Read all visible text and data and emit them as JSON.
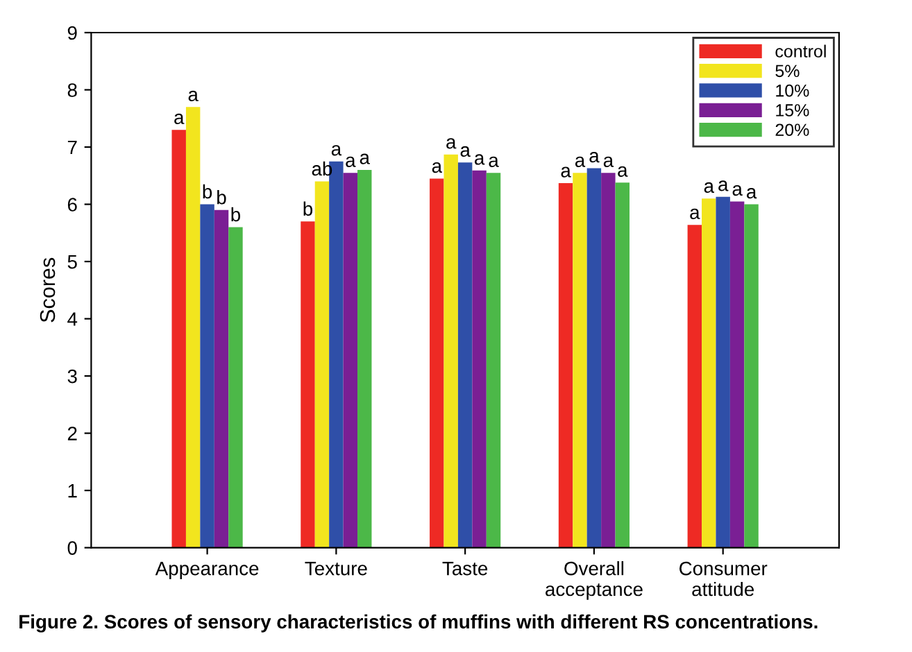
{
  "chart_data": {
    "type": "bar",
    "ylabel": "Scores",
    "categories": [
      "Appearance",
      "Texture",
      "Taste",
      "Overall\nacceptance",
      "Consumer\nattitude"
    ],
    "ylim": [
      0,
      9
    ],
    "yticks": [
      0,
      1,
      2,
      3,
      4,
      5,
      6,
      7,
      8,
      9
    ],
    "grid": false,
    "legend": "top right",
    "series": [
      {
        "name": "control",
        "color": "#ee2a24",
        "values": [
          7.3,
          5.7,
          6.45,
          6.37,
          5.64
        ],
        "value_labels": [
          "a",
          "b",
          "a",
          "a",
          "a"
        ]
      },
      {
        "name": "5%",
        "color": "#f2e51e",
        "values": [
          7.7,
          6.4,
          6.87,
          6.55,
          6.1
        ],
        "value_labels": [
          "a",
          "ab",
          "a",
          "a",
          "a"
        ]
      },
      {
        "name": "10%",
        "color": "#2f4fa8",
        "values": [
          6.0,
          6.75,
          6.73,
          6.63,
          6.13
        ],
        "value_labels": [
          "b",
          "a",
          "a",
          "a",
          "a"
        ]
      },
      {
        "name": "15%",
        "color": "#7a1f94",
        "values": [
          5.9,
          6.55,
          6.59,
          6.55,
          6.05
        ],
        "value_labels": [
          "b",
          "a",
          "a",
          "a",
          "a"
        ]
      },
      {
        "name": "20%",
        "color": "#4cb848",
        "values": [
          5.6,
          6.6,
          6.55,
          6.38,
          6.0
        ],
        "value_labels": [
          "b",
          "a",
          "a",
          "a",
          "a"
        ]
      }
    ],
    "annotations": [
      "Figure 2. Scores of sensory characteristics of muffins with different RS concentrations."
    ]
  }
}
